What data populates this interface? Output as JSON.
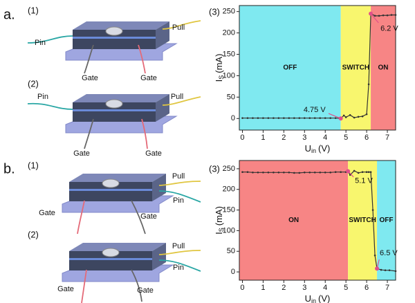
{
  "panels": [
    {
      "label": "a.",
      "chart_label": "(3)",
      "devices": [
        {
          "label": "(1)",
          "wires": [
            "Pin",
            "Pull",
            "Gate",
            "Gate"
          ]
        },
        {
          "label": "(2)",
          "wires": [
            "Pin",
            "Pull",
            "Gate",
            "Gate"
          ]
        }
      ]
    },
    {
      "label": "b.",
      "chart_label": "(3)",
      "devices": [
        {
          "label": "(1)",
          "wires": [
            "Pull",
            "Pin",
            "Gate",
            "Gate"
          ]
        },
        {
          "label": "(2)",
          "wires": [
            "Pull",
            "Pin",
            "Gate",
            "Gate"
          ]
        }
      ]
    }
  ],
  "chart_data": [
    {
      "type": "line",
      "x_label": {
        "symbol": "U",
        "subscript": "in",
        "unit": "(V)"
      },
      "y_label": {
        "symbol": "I",
        "subscript": "S",
        "unit": "(mA)"
      },
      "x": [
        0,
        0.25,
        0.5,
        0.75,
        1,
        1.25,
        1.5,
        1.75,
        2,
        2.25,
        2.5,
        2.75,
        3,
        3.25,
        3.5,
        3.75,
        4,
        4.25,
        4.5,
        4.75,
        4.9,
        5,
        5.2,
        5.4,
        5.6,
        5.8,
        6,
        6.1,
        6.2,
        6.4,
        6.6,
        6.8,
        7,
        7.2,
        7.4
      ],
      "values": [
        1,
        1,
        1,
        1,
        1,
        1,
        1,
        1,
        1,
        1,
        1,
        1,
        1,
        1,
        1,
        1,
        1,
        1,
        1,
        0,
        7,
        3,
        8,
        2,
        4,
        5,
        10,
        80,
        245,
        240,
        240,
        241,
        241,
        242,
        242
      ],
      "color": "#333333",
      "xlim": [
        -0.15,
        7.4
      ],
      "ylim": [
        -27,
        264
      ],
      "xticks": [
        0,
        1,
        2,
        3,
        4,
        5,
        6,
        7
      ],
      "yticks": [
        0,
        50,
        100,
        150,
        200,
        250
      ],
      "regions": {
        "boundaries": [
          4.75,
          6.2
        ],
        "labels": [
          "OFF",
          "SWITCH",
          "ON"
        ],
        "colors": [
          "#7fe9f0",
          "#f8f66e",
          "#f78585"
        ]
      },
      "annotations": [
        {
          "text": "4.75 V",
          "x": 4.75,
          "y": 0
        },
        {
          "text": "6.2 V",
          "x": 6.2,
          "y": 245
        }
      ],
      "annotation_color": "#e0508a"
    },
    {
      "type": "line",
      "x_label": {
        "symbol": "U",
        "subscript": "in",
        "unit": "(V)"
      },
      "y_label": {
        "symbol": "I",
        "subscript": "S",
        "unit": "(mA)"
      },
      "x": [
        0,
        0.25,
        0.5,
        0.75,
        1,
        1.25,
        1.5,
        1.75,
        2,
        2.25,
        2.5,
        2.75,
        3,
        3.25,
        3.5,
        3.75,
        4,
        4.25,
        4.5,
        4.75,
        5,
        5.1,
        5.2,
        5.4,
        5.6,
        5.8,
        6,
        6.1,
        6.2,
        6.3,
        6.4,
        6.5,
        6.7,
        6.9,
        7.1,
        7.4
      ],
      "values": [
        242,
        242,
        241,
        241,
        241,
        241,
        241,
        241,
        241,
        241,
        240,
        240,
        241,
        241,
        241,
        241,
        241,
        241,
        242,
        242,
        242,
        244,
        235,
        245,
        240,
        242,
        242,
        242,
        242,
        150,
        40,
        8,
        5,
        4,
        4,
        2
      ],
      "color": "#333333",
      "xlim": [
        -0.15,
        7.4
      ],
      "ylim": [
        -20,
        270
      ],
      "xticks": [
        0,
        1,
        2,
        3,
        4,
        5,
        6,
        7
      ],
      "yticks": [
        0,
        50,
        100,
        150,
        200,
        250
      ],
      "regions": {
        "boundaries": [
          5.1,
          6.5
        ],
        "labels": [
          "ON",
          "SWITCH",
          "OFF"
        ],
        "colors": [
          "#f78585",
          "#f8f66e",
          "#7fe9f0"
        ]
      },
      "annotations": [
        {
          "text": "5.1 V",
          "x": 5.1,
          "y": 244
        },
        {
          "text": "6.5 V",
          "x": 6.5,
          "y": 8
        }
      ],
      "annotation_color": "#e0508a"
    }
  ]
}
